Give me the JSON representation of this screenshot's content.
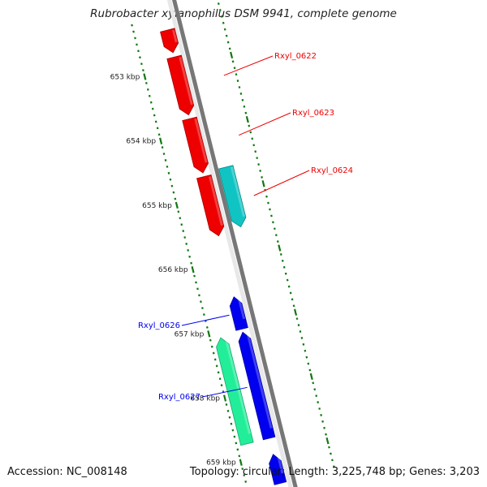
{
  "title": "Rubrobacter xylanophilus DSM 9941, complete genome",
  "footer": {
    "accession": "Accession: NC_008148",
    "summary": "Topology: circular; Length: 3,225,748 bp; Genes: 3,203"
  },
  "colors": {
    "backbone": "#8a8a8a",
    "tick": "#117711",
    "red": "#ee0000",
    "cyan": "#11c4c4",
    "blue": "#0000ee",
    "mint": "#22ee99"
  },
  "ruler": [
    {
      "kb": 653,
      "label": "653 kbp"
    },
    {
      "kb": 654,
      "label": "654 kbp"
    },
    {
      "kb": 655,
      "label": "655 kbp"
    },
    {
      "kb": 656,
      "label": "656 kbp"
    },
    {
      "kb": 657,
      "label": "657 kbp"
    },
    {
      "kb": 658,
      "label": "658 kbp"
    },
    {
      "kb": 659,
      "label": "659 kbp"
    }
  ],
  "genes": [
    {
      "id": "g-top",
      "start": 652.4,
      "end": 652.75,
      "strand": "+",
      "color": "red",
      "label": ""
    },
    {
      "id": "g0622",
      "start": 652.82,
      "end": 653.72,
      "strand": "+",
      "color": "red",
      "label": "Rxyl_0622"
    },
    {
      "id": "g0623",
      "start": 653.78,
      "end": 654.62,
      "strand": "+",
      "color": "red",
      "label": "Rxyl_0623"
    },
    {
      "id": "g0624",
      "start": 654.68,
      "end": 655.6,
      "strand": "+",
      "color": "red",
      "label": "Rxyl_0624"
    },
    {
      "id": "g0624b",
      "start": 654.62,
      "end": 655.55,
      "strand": "+",
      "color": "cyan",
      "label": ""
    },
    {
      "id": "g0626",
      "start": 656.55,
      "end": 657.05,
      "strand": "-",
      "color": "blue",
      "label": "Rxyl_0626"
    },
    {
      "id": "g0627",
      "start": 657.1,
      "end": 658.75,
      "strand": "-",
      "color": "blue",
      "label": "Rxyl_0627"
    },
    {
      "id": "g0627b",
      "start": 657.1,
      "end": 658.75,
      "strand": "-",
      "color": "mint",
      "label": ""
    },
    {
      "id": "g-bottom",
      "start": 659.0,
      "end": 659.45,
      "strand": "-",
      "color": "blue",
      "label": ""
    }
  ]
}
